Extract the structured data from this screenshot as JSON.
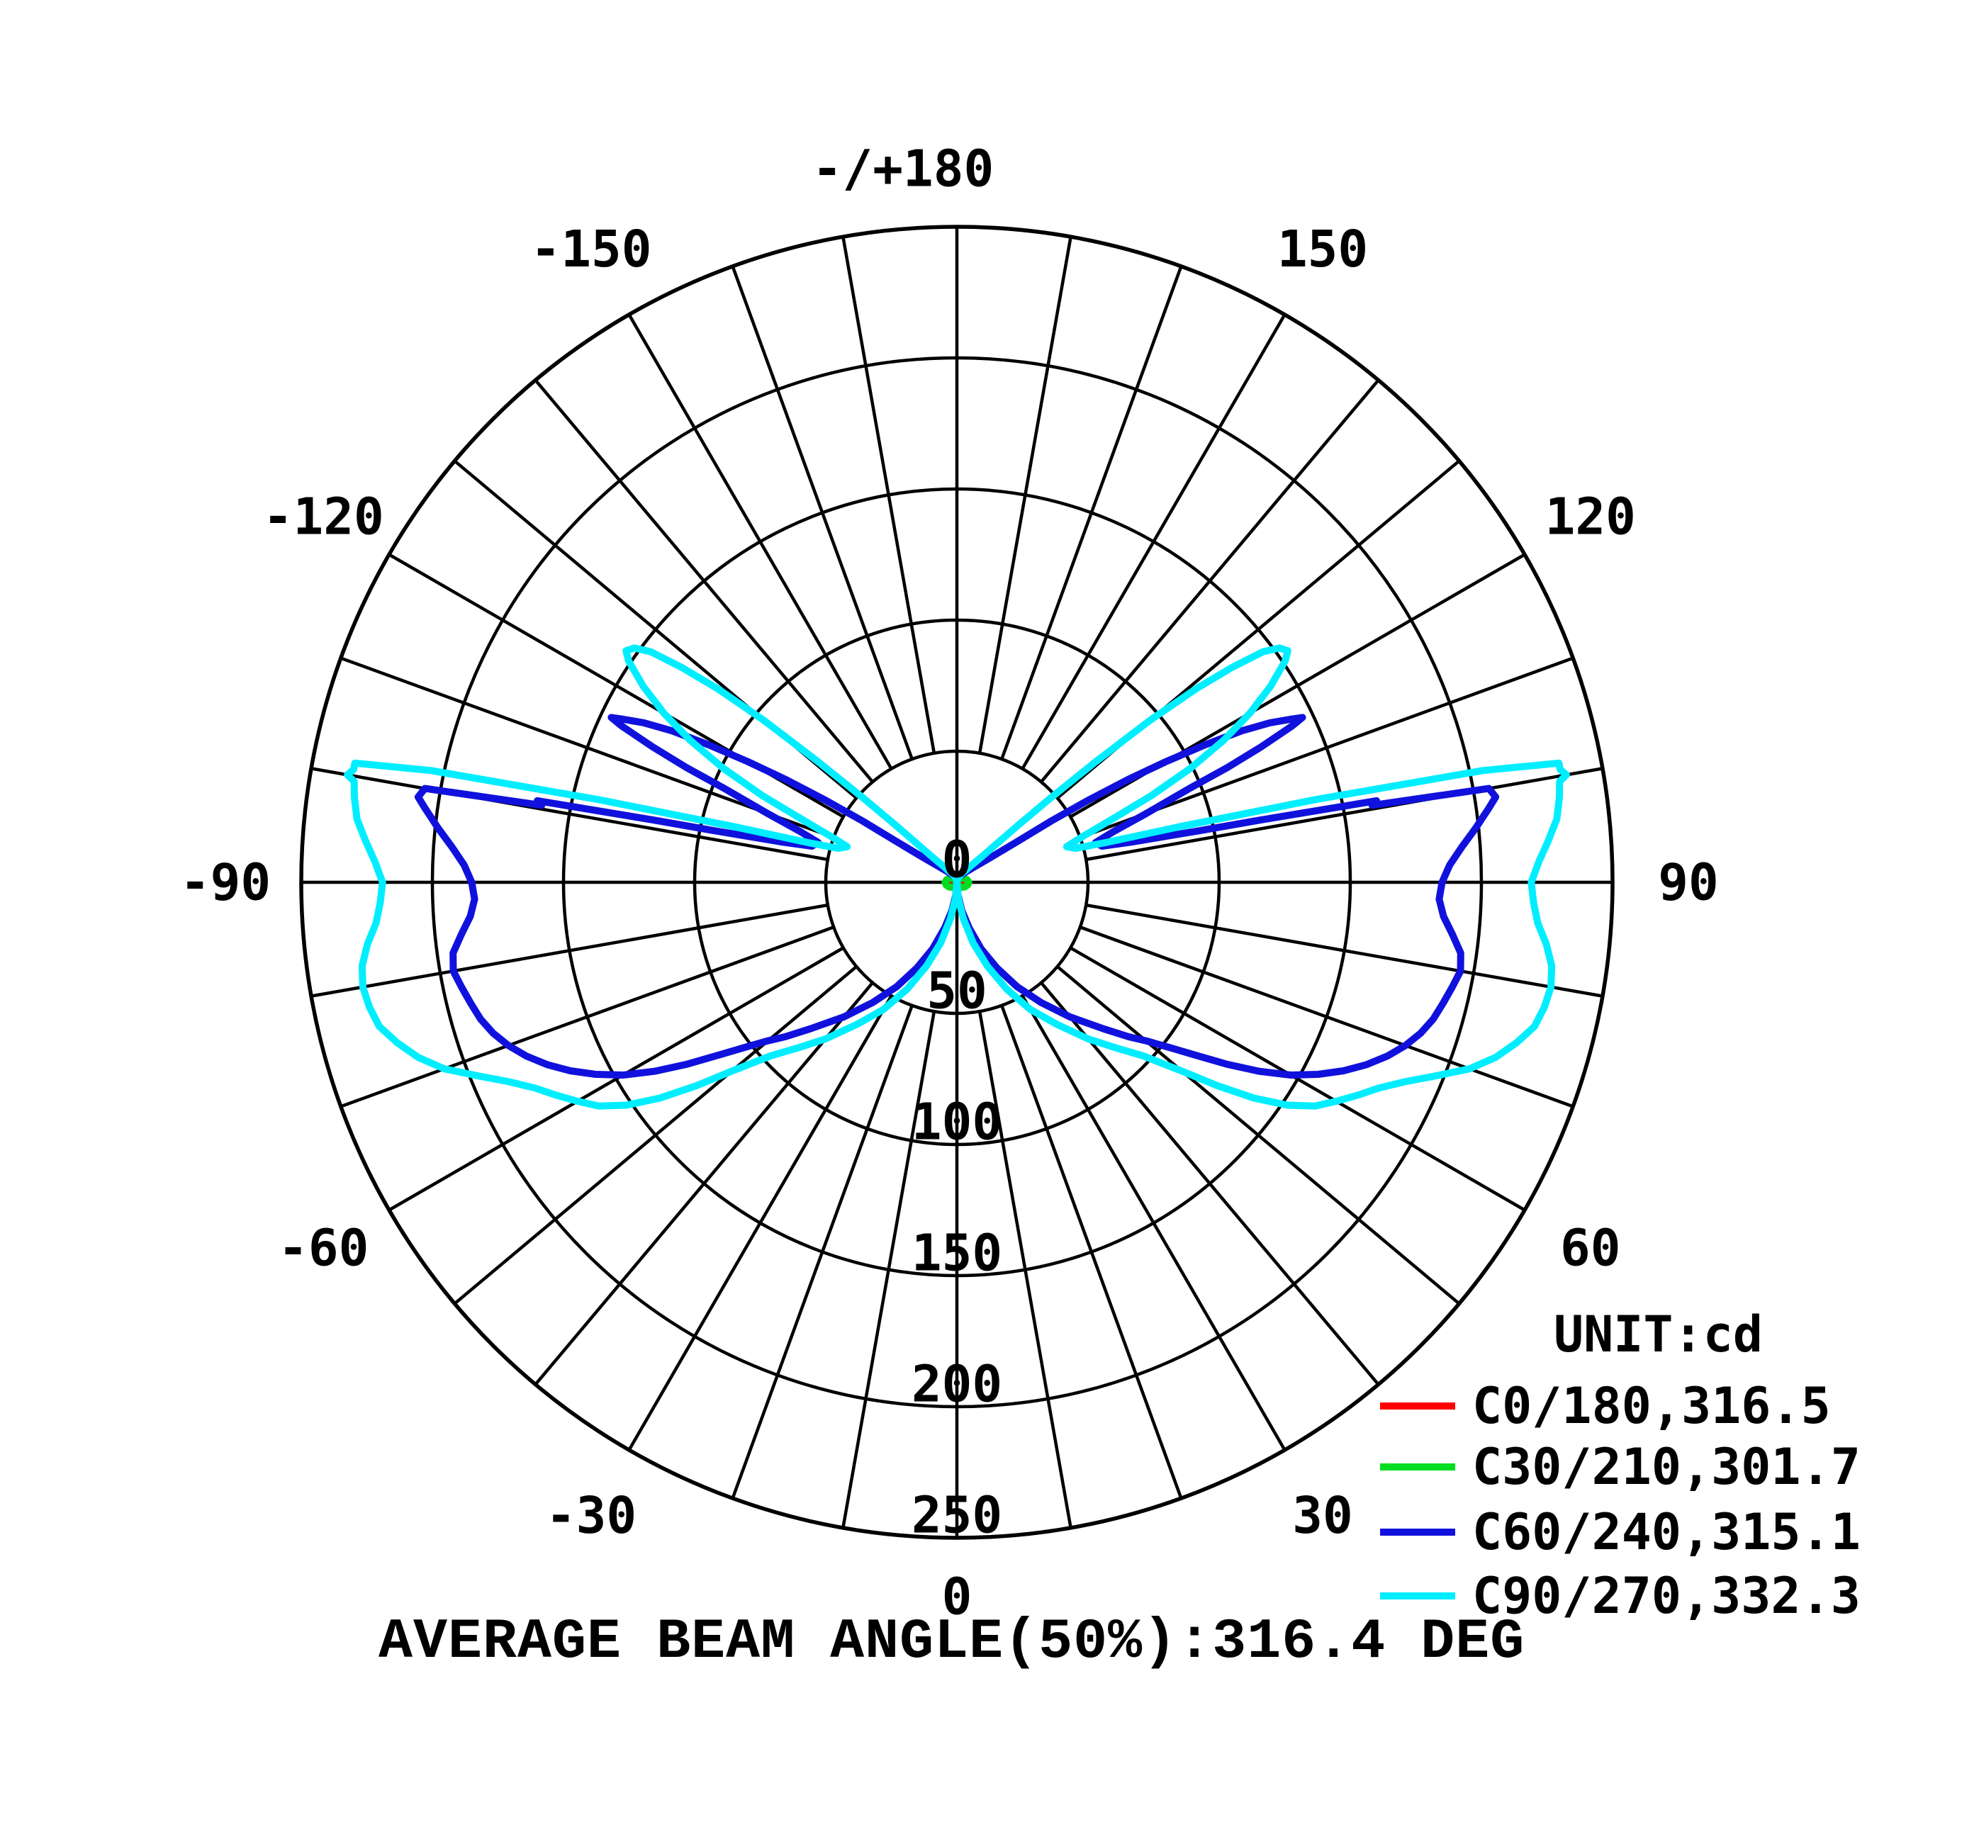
{
  "chart_data": {
    "type": "line",
    "coordinate_system": "polar",
    "title": "AVERAGE BEAM ANGLE(50%):316.4 DEG",
    "unit_label": "UNIT:cd",
    "top_axis_label": "-/+180",
    "bottom_axis_label": "0",
    "orientation": "0 deg at bottom (nadir), +angles to the right, -angles to the left, 180 at top",
    "angle_tick_labels": [
      -150,
      -120,
      -90,
      -60,
      -30,
      0,
      30,
      60,
      90,
      120,
      150
    ],
    "angle_grid_step_deg": 10,
    "radial_ticks": [
      0,
      50,
      100,
      150,
      200,
      250
    ],
    "radial_max": 250,
    "grid": true,
    "legend_position": "bottom-right",
    "series": [
      {
        "name": "C0/180,316.5",
        "plane": "C0/180",
        "beam_angle_deg": 316.5,
        "color": "#ff0000",
        "mirror_symmetric": true,
        "points": [
          [
            0,
            0
          ],
          [
            20,
            0.7
          ],
          [
            40,
            1.6
          ],
          [
            60,
            2.3
          ],
          [
            90,
            3
          ],
          [
            120,
            2.2
          ],
          [
            150,
            0.8
          ],
          [
            180,
            0
          ]
        ]
      },
      {
        "name": "C30/210,301.7",
        "plane": "C30/210",
        "beam_angle_deg": 301.7,
        "color": "#00dd22",
        "mirror_symmetric": true,
        "points": [
          [
            0,
            0
          ],
          [
            20,
            1
          ],
          [
            40,
            2.5
          ],
          [
            60,
            3.5
          ],
          [
            75,
            4.2
          ],
          [
            90,
            4.5
          ],
          [
            105,
            4
          ],
          [
            120,
            3.2
          ],
          [
            135,
            2
          ],
          [
            150,
            1
          ],
          [
            180,
            0
          ]
        ]
      },
      {
        "name": "C60/240,315.1",
        "plane": "C60/240",
        "beam_angle_deg": 315.1,
        "color": "#1111dd",
        "mirror_symmetric": true,
        "points": [
          [
            0,
            0
          ],
          [
            5,
            5
          ],
          [
            10,
            11
          ],
          [
            15,
            18
          ],
          [
            20,
            27
          ],
          [
            25,
            36
          ],
          [
            30,
            46
          ],
          [
            35,
            56
          ],
          [
            40,
            67
          ],
          [
            45,
            79
          ],
          [
            48,
            88
          ],
          [
            50,
            94
          ],
          [
            52,
            102
          ],
          [
            54,
            112
          ],
          [
            56,
            124
          ],
          [
            58,
            136
          ],
          [
            60,
            147
          ],
          [
            62,
            156
          ],
          [
            64,
            164
          ],
          [
            66,
            171
          ],
          [
            68,
            177
          ],
          [
            70,
            182
          ],
          [
            72,
            186
          ],
          [
            74,
            189
          ],
          [
            76,
            191
          ],
          [
            78,
            193
          ],
          [
            80,
            195
          ],
          [
            82,
            194
          ],
          [
            84,
            190
          ],
          [
            86,
            186
          ],
          [
            88,
            184
          ],
          [
            90,
            185
          ],
          [
            92,
            188
          ],
          [
            94,
            193
          ],
          [
            96,
            199
          ],
          [
            98,
            205
          ],
          [
            99,
            208
          ],
          [
            100,
            206
          ],
          [
            100.5,
            161
          ],
          [
            101,
            163
          ],
          [
            101.6,
            118
          ],
          [
            102,
            95
          ],
          [
            103,
            68
          ],
          [
            104,
            57
          ],
          [
            106,
            55
          ],
          [
            108,
            63
          ],
          [
            110,
            77
          ],
          [
            112,
            96
          ],
          [
            113,
            112
          ],
          [
            114,
            127
          ],
          [
            115,
            141
          ],
          [
            115.5,
            146
          ],
          [
            116,
            142
          ],
          [
            117,
            134
          ],
          [
            118,
            123
          ],
          [
            119,
            108
          ],
          [
            120,
            92
          ],
          [
            121,
            76
          ],
          [
            122,
            59
          ],
          [
            123,
            43
          ],
          [
            124,
            28
          ],
          [
            126,
            17
          ],
          [
            130,
            10
          ],
          [
            140,
            5
          ],
          [
            150,
            3
          ],
          [
            160,
            2
          ],
          [
            170,
            1
          ],
          [
            180,
            0
          ]
        ]
      },
      {
        "name": "C90/270,332.3",
        "plane": "C90/270",
        "beam_angle_deg": 332.3,
        "color": "#00eeff",
        "mirror_symmetric": true,
        "points": [
          [
            0,
            0
          ],
          [
            5,
            6
          ],
          [
            10,
            14
          ],
          [
            15,
            24
          ],
          [
            20,
            34
          ],
          [
            25,
            45
          ],
          [
            30,
            56
          ],
          [
            35,
            66
          ],
          [
            40,
            78
          ],
          [
            44,
            88
          ],
          [
            47,
            97
          ],
          [
            50,
            112
          ],
          [
            52,
            126
          ],
          [
            54,
            140
          ],
          [
            56,
            152
          ],
          [
            58,
            161
          ],
          [
            60,
            167
          ],
          [
            62,
            173
          ],
          [
            64,
            179
          ],
          [
            66,
            187
          ],
          [
            68,
            197
          ],
          [
            70,
            208
          ],
          [
            72,
            216
          ],
          [
            74,
            222
          ],
          [
            76,
            227
          ],
          [
            78,
            229
          ],
          [
            80,
            230
          ],
          [
            82,
            229
          ],
          [
            84,
            226
          ],
          [
            86,
            222
          ],
          [
            88,
            220
          ],
          [
            90,
            219
          ],
          [
            92,
            222
          ],
          [
            94,
            226
          ],
          [
            96,
            230
          ],
          [
            98,
            232
          ],
          [
            99.5,
            233
          ],
          [
            100,
            236
          ],
          [
            100.6,
            234
          ],
          [
            101.2,
            234
          ],
          [
            102,
            205
          ],
          [
            103,
            140
          ],
          [
            104,
            88
          ],
          [
            105,
            58
          ],
          [
            106,
            47
          ],
          [
            108,
            44
          ],
          [
            110,
            51
          ],
          [
            112,
            63
          ],
          [
            114,
            81
          ],
          [
            116,
            99
          ],
          [
            118,
            115
          ],
          [
            120,
            129
          ],
          [
            122,
            141
          ],
          [
            124,
            151
          ],
          [
            125,
            154
          ],
          [
            126,
            152
          ],
          [
            127,
            146
          ],
          [
            128,
            133
          ],
          [
            129,
            117
          ],
          [
            130,
            96
          ],
          [
            131,
            70
          ],
          [
            132,
            48
          ],
          [
            133,
            32
          ],
          [
            134,
            22
          ],
          [
            136,
            13
          ],
          [
            140,
            8
          ],
          [
            145,
            5
          ],
          [
            150,
            4
          ],
          [
            160,
            2
          ],
          [
            170,
            1
          ],
          [
            180,
            0
          ]
        ]
      }
    ],
    "legend_entries": [
      {
        "label": "C0/180,316.5",
        "color": "#ff0000"
      },
      {
        "label": "C30/210,301.7",
        "color": "#00dd22"
      },
      {
        "label": "C60/240,315.1",
        "color": "#1111dd"
      },
      {
        "label": "C90/270,332.3",
        "color": "#00eeff"
      }
    ]
  },
  "colors": {
    "background": "#ffffff",
    "grid": "#000000",
    "text": "#000000"
  }
}
